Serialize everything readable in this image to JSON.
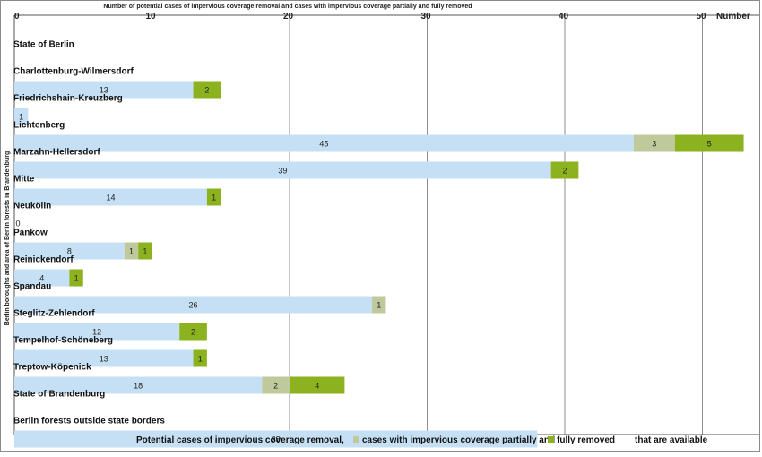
{
  "chart_data": {
    "type": "bar",
    "orientation": "horizontal",
    "stacked": true,
    "title": "Number of potential cases of impervious coverage removal and cases with impervious coverage partially and fully removed",
    "xlabel": "Number",
    "ylabel": "Berlin boroughs and area of Berlin forests in Brandenburg",
    "xlim": [
      0,
      53
    ],
    "x_ticks": [
      "0",
      "10",
      "20",
      "30",
      "40",
      "50"
    ],
    "grid": "vertical",
    "legend_position": "bottom",
    "colors": [
      "#c5e0f4",
      "#bfc99c",
      "#8db21f"
    ],
    "legend": [
      "Potential cases of impervious coverage removal,",
      "cases with impervious coverage partially and",
      "fully removed",
      "that are available"
    ],
    "rows": [
      {
        "label": "State of Berlin",
        "heading": true,
        "values": null
      },
      {
        "label": "Charlottenburg-Wilmersdorf",
        "values": [
          13,
          0,
          2
        ]
      },
      {
        "label": "Friedrichshain-Kreuzberg",
        "values": [
          1,
          0,
          0
        ]
      },
      {
        "label": "Lichtenberg",
        "values": [
          45,
          3,
          5
        ]
      },
      {
        "label": "Marzahn-Hellersdorf",
        "values": [
          39,
          0,
          2
        ]
      },
      {
        "label": "Mitte",
        "values": [
          14,
          0,
          1
        ]
      },
      {
        "label": "Neukölln",
        "values": [
          0,
          0,
          0
        ]
      },
      {
        "label": "Pankow",
        "values": [
          8,
          1,
          1
        ]
      },
      {
        "label": "Reinickendorf",
        "values": [
          4,
          0,
          1
        ]
      },
      {
        "label": "Spandau",
        "values": [
          26,
          1,
          0
        ]
      },
      {
        "label": "Steglitz-Zehlendorf",
        "values": [
          12,
          0,
          2
        ]
      },
      {
        "label": "Tempelhof-Schöneberg",
        "values": [
          13,
          0,
          1
        ]
      },
      {
        "label": "Treptow-Köpenick",
        "values": [
          18,
          2,
          4
        ]
      },
      {
        "label": "State of Brandenburg",
        "heading": true,
        "values": null
      },
      {
        "label": "Berlin forests outside state borders",
        "values": [
          38,
          0,
          0
        ]
      }
    ]
  }
}
